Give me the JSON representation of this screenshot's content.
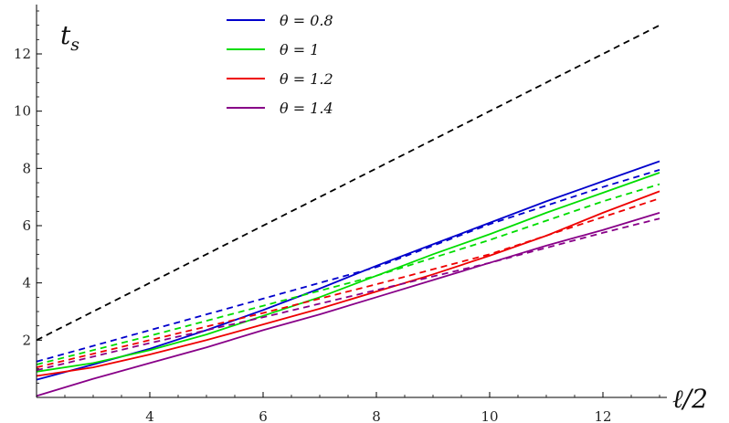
{
  "chart_data": {
    "type": "line",
    "ylabel": "t_s",
    "ylabel_main": "t",
    "ylabel_sub": "s",
    "xlabel": "ℓ/2",
    "xlim": [
      2,
      13
    ],
    "ylim": [
      0,
      13.5
    ],
    "x_ticks": [
      4,
      6,
      8,
      10,
      12
    ],
    "y_ticks": [
      2,
      4,
      6,
      8,
      10,
      12
    ],
    "grid": false,
    "legend_position": "top-center",
    "series": [
      {
        "name": "θ = 0.8",
        "color": "#0000cc",
        "style": "solid",
        "x": [
          2,
          3,
          4,
          5,
          6,
          7,
          8,
          9,
          10,
          11,
          12,
          13
        ],
        "y": [
          0.62,
          1.15,
          1.7,
          2.35,
          3.05,
          3.8,
          4.6,
          5.35,
          6.1,
          6.85,
          7.55,
          8.25
        ]
      },
      {
        "name": "θ = 0.8 (dashed)",
        "color": "#0000cc",
        "style": "dashed",
        "x": [
          2,
          4,
          6,
          8,
          10,
          12,
          13
        ],
        "y": [
          1.25,
          2.35,
          3.45,
          4.55,
          6.05,
          7.35,
          7.95
        ]
      },
      {
        "name": "θ = 1",
        "color": "#00dd00",
        "style": "solid",
        "x": [
          2,
          3,
          4,
          5,
          6,
          7,
          8,
          9,
          10,
          11,
          12,
          13
        ],
        "y": [
          0.9,
          1.2,
          1.65,
          2.2,
          2.85,
          3.5,
          4.25,
          5.0,
          5.7,
          6.45,
          7.15,
          7.85
        ]
      },
      {
        "name": "θ = 1 (dashed)",
        "color": "#00dd00",
        "style": "dashed",
        "x": [
          2,
          4,
          6,
          8,
          10,
          12,
          13
        ],
        "y": [
          1.15,
          2.15,
          3.2,
          4.25,
          5.5,
          6.85,
          7.45
        ]
      },
      {
        "name": "θ = 1.2",
        "color": "#ee0000",
        "style": "solid",
        "x": [
          2,
          3,
          4,
          5,
          6,
          7,
          8,
          9,
          10,
          11,
          12,
          13
        ],
        "y": [
          0.75,
          1.05,
          1.5,
          2.0,
          2.55,
          3.1,
          3.7,
          4.3,
          4.95,
          5.65,
          6.45,
          7.2
        ]
      },
      {
        "name": "θ = 1.2 (dashed)",
        "color": "#ee0000",
        "style": "dashed",
        "x": [
          2,
          4,
          6,
          8,
          10,
          12,
          13
        ],
        "y": [
          1.05,
          2.0,
          2.95,
          3.95,
          5.0,
          6.3,
          6.95
        ]
      },
      {
        "name": "θ = 1.4",
        "color": "#880088",
        "style": "solid",
        "x": [
          2,
          3,
          4,
          5,
          6,
          7,
          8,
          9,
          10,
          11,
          12,
          13
        ],
        "y": [
          0.05,
          0.65,
          1.2,
          1.75,
          2.35,
          2.9,
          3.5,
          4.1,
          4.7,
          5.3,
          5.85,
          6.45
        ]
      },
      {
        "name": "θ = 1.4 (dashed)",
        "color": "#880088",
        "style": "dashed",
        "x": [
          2,
          4,
          6,
          8,
          10,
          12,
          13
        ],
        "y": [
          0.95,
          1.9,
          2.8,
          3.75,
          4.7,
          5.75,
          6.25
        ]
      },
      {
        "name": "reference (black dashed)",
        "color": "#000000",
        "style": "dashed",
        "x": [
          2,
          13
        ],
        "y": [
          2.0,
          13.0
        ]
      }
    ],
    "legend": [
      {
        "label": "θ = 0.8",
        "color": "#0000cc"
      },
      {
        "label": "θ = 1",
        "color": "#00dd00"
      },
      {
        "label": "θ = 1.2",
        "color": "#ee0000"
      },
      {
        "label": "θ = 1.4",
        "color": "#880088"
      }
    ]
  }
}
